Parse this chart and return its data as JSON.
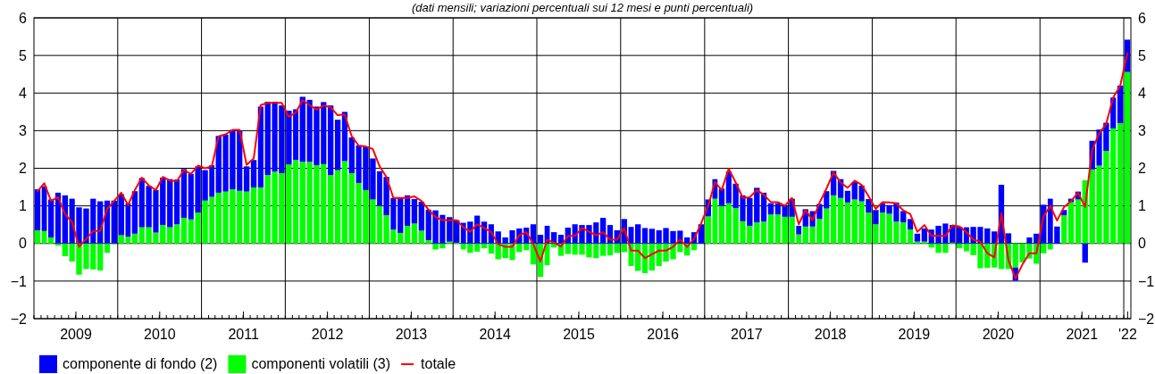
{
  "chart_data": {
    "type": "bar",
    "subtitle": "(dati mensili; variazioni percentuali sui 12 mesi e punti percentuali)",
    "stacked": true,
    "grid": true,
    "legend": "bottom left",
    "x": [
      "2009-01",
      "2009-02",
      "2009-03",
      "2009-04",
      "2009-05",
      "2009-06",
      "2009-07",
      "2009-08",
      "2009-09",
      "2009-10",
      "2009-11",
      "2009-12",
      "2010-01",
      "2010-02",
      "2010-03",
      "2010-04",
      "2010-05",
      "2010-06",
      "2010-07",
      "2010-08",
      "2010-09",
      "2010-10",
      "2010-11",
      "2010-12",
      "2011-01",
      "2011-02",
      "2011-03",
      "2011-04",
      "2011-05",
      "2011-06",
      "2011-07",
      "2011-08",
      "2011-09",
      "2011-10",
      "2011-11",
      "2011-12",
      "2012-01",
      "2012-02",
      "2012-03",
      "2012-04",
      "2012-05",
      "2012-06",
      "2012-07",
      "2012-08",
      "2012-09",
      "2012-10",
      "2012-11",
      "2012-12",
      "2013-01",
      "2013-02",
      "2013-03",
      "2013-04",
      "2013-05",
      "2013-06",
      "2013-07",
      "2013-08",
      "2013-09",
      "2013-10",
      "2013-11",
      "2013-12",
      "2014-01",
      "2014-02",
      "2014-03",
      "2014-04",
      "2014-05",
      "2014-06",
      "2014-07",
      "2014-08",
      "2014-09",
      "2014-10",
      "2014-11",
      "2014-12",
      "2015-01",
      "2015-02",
      "2015-03",
      "2015-04",
      "2015-05",
      "2015-06",
      "2015-07",
      "2015-08",
      "2015-09",
      "2015-10",
      "2015-11",
      "2015-12",
      "2016-01",
      "2016-02",
      "2016-03",
      "2016-04",
      "2016-05",
      "2016-06",
      "2016-07",
      "2016-08",
      "2016-09",
      "2016-10",
      "2016-11",
      "2016-12",
      "2017-01",
      "2017-02",
      "2017-03",
      "2017-04",
      "2017-05",
      "2017-06",
      "2017-07",
      "2017-08",
      "2017-09",
      "2017-10",
      "2017-11",
      "2017-12",
      "2018-01",
      "2018-02",
      "2018-03",
      "2018-04",
      "2018-05",
      "2018-06",
      "2018-07",
      "2018-08",
      "2018-09",
      "2018-10",
      "2018-11",
      "2018-12",
      "2019-01",
      "2019-02",
      "2019-03",
      "2019-04",
      "2019-05",
      "2019-06",
      "2019-07",
      "2019-08",
      "2019-09",
      "2019-10",
      "2019-11",
      "2019-12",
      "2020-01",
      "2020-02",
      "2020-03",
      "2020-04",
      "2020-05",
      "2020-06",
      "2020-07",
      "2020-08",
      "2020-09",
      "2020-10",
      "2020-11",
      "2020-12",
      "2021-01",
      "2021-02",
      "2021-03",
      "2021-04",
      "2021-05",
      "2021-06",
      "2021-07",
      "2021-08",
      "2021-09",
      "2021-10",
      "2021-11",
      "2021-12",
      "2022-01"
    ],
    "xlim": [
      "2009-01-01",
      "2022-02-01"
    ],
    "xticks": [
      {
        "value": "2009-07-01",
        "label": "2009"
      },
      {
        "value": "2010-01-01",
        "label": null
      },
      {
        "value": "2010-07-01",
        "label": "2010"
      },
      {
        "value": "2011-01-01",
        "label": null
      },
      {
        "value": "2011-07-01",
        "label": "2011"
      },
      {
        "value": "2012-01-01",
        "label": null
      },
      {
        "value": "2012-07-01",
        "label": "2012"
      },
      {
        "value": "2013-01-01",
        "label": null
      },
      {
        "value": "2013-07-01",
        "label": "2013"
      },
      {
        "value": "2014-01-01",
        "label": null
      },
      {
        "value": "2014-07-01",
        "label": "2014"
      },
      {
        "value": "2015-01-01",
        "label": null
      },
      {
        "value": "2015-07-01",
        "label": "2015"
      },
      {
        "value": "2016-01-01",
        "label": null
      },
      {
        "value": "2016-07-01",
        "label": "2016"
      },
      {
        "value": "2017-01-01",
        "label": null
      },
      {
        "value": "2017-07-01",
        "label": "2017"
      },
      {
        "value": "2018-01-01",
        "label": null
      },
      {
        "value": "2018-07-01",
        "label": "2018"
      },
      {
        "value": "2019-01-01",
        "label": null
      },
      {
        "value": "2019-07-01",
        "label": "2019"
      },
      {
        "value": "2020-01-01",
        "label": null
      },
      {
        "value": "2020-07-01",
        "label": "2020"
      },
      {
        "value": "2021-01-01",
        "label": null
      },
      {
        "value": "2021-07-01",
        "label": "2021"
      },
      {
        "value": "2022-01-01",
        "label": null
      },
      {
        "value": "2022-01-16",
        "label": "'22"
      }
    ],
    "ylim": [
      -2,
      6
    ],
    "yticks": [
      -2,
      -1,
      0,
      1,
      2,
      3,
      4,
      5,
      6
    ],
    "y2lim": [
      -2,
      6
    ],
    "y2ticks": [
      -2,
      -1,
      0,
      1,
      2,
      3,
      4,
      5,
      6
    ],
    "series": [
      {
        "name": "componenti volatili (3)",
        "color": "#00ff00",
        "values": [
          0.35,
          0.33,
          0.16,
          -0.06,
          -0.34,
          -0.48,
          -0.83,
          -0.68,
          -0.69,
          -0.72,
          -0.25,
          -0.02,
          0.22,
          0.18,
          0.26,
          0.43,
          0.43,
          0.29,
          0.49,
          0.43,
          0.51,
          0.68,
          0.64,
          0.82,
          1.14,
          1.24,
          1.35,
          1.38,
          1.44,
          1.4,
          1.38,
          1.49,
          1.49,
          1.82,
          1.91,
          1.87,
          2.1,
          2.22,
          2.17,
          2.17,
          2.08,
          2.11,
          1.82,
          1.95,
          2.19,
          1.87,
          1.61,
          1.42,
          1.17,
          1.0,
          0.75,
          0.37,
          0.28,
          0.47,
          0.53,
          0.34,
          0.09,
          -0.16,
          -0.13,
          0.05,
          0.02,
          -0.16,
          -0.25,
          -0.22,
          -0.13,
          -0.27,
          -0.42,
          -0.39,
          -0.44,
          -0.23,
          -0.18,
          -0.56,
          -0.89,
          -0.58,
          -0.11,
          -0.33,
          -0.28,
          -0.3,
          -0.3,
          -0.37,
          -0.39,
          -0.33,
          -0.32,
          -0.25,
          -0.23,
          -0.6,
          -0.73,
          -0.79,
          -0.72,
          -0.6,
          -0.48,
          -0.42,
          -0.23,
          -0.32,
          -0.18,
          0.0,
          0.72,
          1.19,
          1.0,
          1.07,
          0.94,
          0.59,
          0.47,
          0.56,
          0.58,
          0.77,
          0.77,
          0.71,
          0.71,
          0.24,
          0.45,
          0.45,
          0.65,
          0.93,
          1.28,
          1.21,
          1.09,
          1.17,
          1.12,
          0.82,
          0.51,
          0.82,
          0.79,
          0.58,
          0.56,
          0.37,
          0.05,
          0.05,
          -0.11,
          -0.25,
          -0.25,
          0.02,
          -0.13,
          -0.21,
          -0.31,
          -0.66,
          -0.65,
          -0.64,
          -0.68,
          -0.68,
          -0.64,
          -0.5,
          -0.4,
          -0.54,
          -0.26,
          -0.16,
          0.0,
          0.75,
          1.1,
          1.17,
          1.68,
          1.97,
          2.07,
          2.46,
          3.06,
          3.2,
          4.56
        ]
      },
      {
        "name": "componente di fondo (2)",
        "color": "#0000ff",
        "values": [
          1.09,
          1.19,
          1.01,
          1.35,
          1.28,
          1.19,
          0.96,
          0.93,
          1.19,
          1.12,
          1.14,
          1.14,
          1.09,
          0.89,
          1.13,
          1.31,
          1.1,
          1.13,
          1.26,
          1.28,
          1.19,
          1.3,
          1.21,
          1.23,
          0.81,
          0.84,
          1.51,
          1.51,
          1.58,
          1.6,
          0.67,
          0.73,
          2.15,
          1.95,
          1.86,
          1.8,
          1.43,
          1.35,
          1.73,
          1.65,
          1.56,
          1.65,
          1.85,
          1.34,
          1.31,
          0.95,
          1.0,
          1.16,
          1.09,
          0.92,
          1.02,
          0.84,
          0.93,
          0.81,
          0.65,
          0.77,
          0.81,
          0.88,
          0.76,
          0.65,
          0.6,
          0.55,
          0.58,
          0.74,
          0.58,
          0.51,
          0.32,
          0.16,
          0.35,
          0.4,
          0.42,
          0.51,
          0.23,
          0.47,
          0.3,
          0.23,
          0.42,
          0.51,
          0.49,
          0.49,
          0.56,
          0.68,
          0.49,
          0.35,
          0.65,
          0.44,
          0.51,
          0.41,
          0.39,
          0.35,
          0.41,
          0.33,
          0.34,
          0.16,
          0.3,
          0.51,
          0.45,
          0.52,
          0.46,
          0.84,
          0.65,
          0.69,
          0.74,
          0.92,
          0.77,
          0.3,
          0.3,
          0.29,
          0.48,
          0.23,
          0.46,
          0.41,
          0.4,
          0.46,
          0.65,
          0.5,
          0.31,
          0.46,
          0.42,
          0.36,
          0.38,
          0.25,
          0.23,
          0.51,
          0.3,
          0.28,
          0.21,
          0.35,
          0.37,
          0.47,
          0.53,
          0.47,
          0.44,
          0.43,
          0.44,
          0.44,
          0.4,
          0.32,
          1.56,
          0.27,
          -0.35,
          0.0,
          0.16,
          0.26,
          1.03,
          1.19,
          0.45,
          0.14,
          0.09,
          0.21,
          -0.51,
          0.76,
          0.96,
          0.75,
          0.82,
          1.0,
          0.86
        ]
      },
      {
        "name": "totale",
        "type": "line",
        "color": "#ff0000",
        "values": [
          1.39,
          1.6,
          1.13,
          1.23,
          0.78,
          0.57,
          -0.09,
          0.12,
          0.33,
          0.33,
          0.92,
          1.13,
          1.35,
          1.02,
          1.42,
          1.75,
          1.54,
          1.42,
          1.77,
          1.67,
          1.66,
          1.95,
          1.85,
          2.07,
          2.0,
          2.05,
          2.85,
          2.9,
          3.02,
          3.02,
          2.09,
          2.26,
          3.68,
          3.74,
          3.74,
          3.74,
          3.37,
          3.48,
          3.81,
          3.68,
          3.56,
          3.67,
          3.62,
          3.41,
          3.43,
          2.85,
          2.6,
          2.58,
          2.51,
          2.05,
          1.77,
          1.21,
          1.21,
          1.21,
          1.25,
          1.13,
          0.9,
          0.7,
          0.62,
          0.62,
          0.62,
          0.43,
          0.31,
          0.51,
          0.41,
          0.3,
          -0.02,
          -0.09,
          -0.09,
          0.22,
          0.3,
          -0.02,
          -0.48,
          0.1,
          0.02,
          -0.08,
          0.2,
          0.2,
          0.41,
          0.31,
          0.22,
          0.3,
          0.1,
          0.1,
          0.41,
          -0.19,
          -0.19,
          -0.39,
          -0.29,
          -0.19,
          -0.19,
          -0.09,
          0.1,
          -0.09,
          0.12,
          0.53,
          1.0,
          1.63,
          1.42,
          1.99,
          1.62,
          1.21,
          1.23,
          1.42,
          1.29,
          1.1,
          1.1,
          1.0,
          1.21,
          0.51,
          0.89,
          0.62,
          1.08,
          1.46,
          1.89,
          1.62,
          1.48,
          1.67,
          1.56,
          1.25,
          0.92,
          1.1,
          1.09,
          1.07,
          0.88,
          0.78,
          0.31,
          0.49,
          0.2,
          0.2,
          0.2,
          0.48,
          0.45,
          0.3,
          0.1,
          0.05,
          -0.26,
          -0.37,
          0.8,
          -0.44,
          -0.93,
          -0.56,
          -0.26,
          -0.26,
          0.72,
          1.0,
          0.61,
          0.97,
          1.13,
          1.35,
          0.97,
          2.49,
          2.93,
          3.18,
          3.88,
          4.19,
          5.06
        ]
      }
    ]
  }
}
